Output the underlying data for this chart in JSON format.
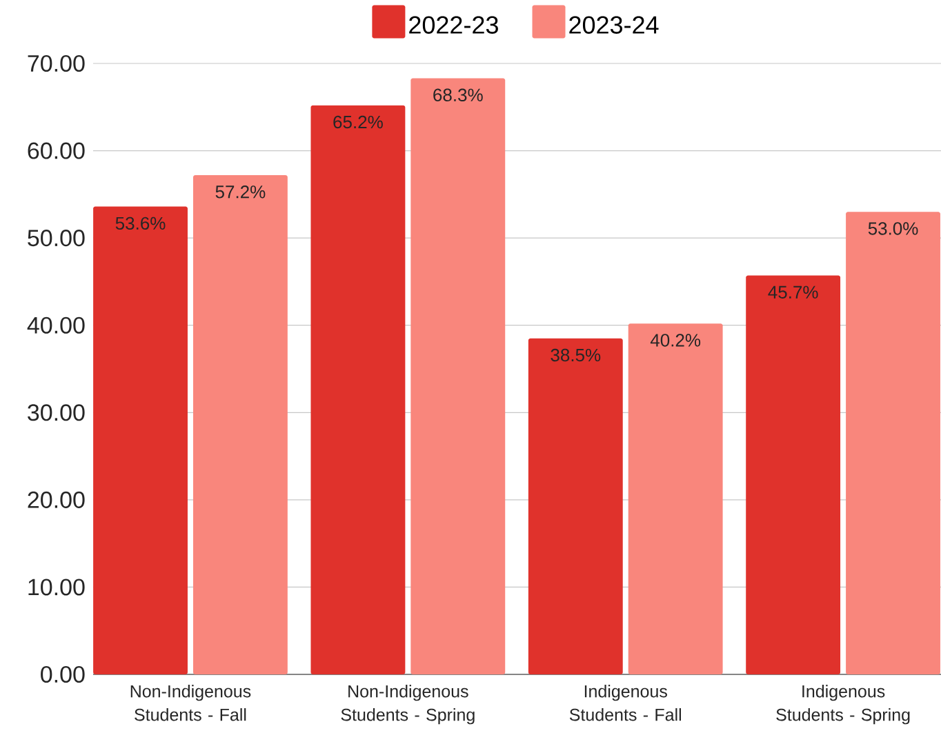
{
  "chart_data": {
    "type": "bar",
    "categories": [
      "Non-Indigenous Students - Fall",
      "Non-Indigenous Students - Spring",
      "Indigenous Students - Fall",
      "Indigenous Students - Spring"
    ],
    "series": [
      {
        "name": "2022-23",
        "color": "#e0322c",
        "values": [
          53.6,
          65.2,
          38.5,
          45.7
        ],
        "value_labels": [
          "53.6%",
          "65.2%",
          "38.5%",
          "45.7%"
        ]
      },
      {
        "name": "2023-24",
        "color": "#f9867c",
        "values": [
          57.2,
          68.3,
          40.2,
          53.0
        ],
        "value_labels": [
          "57.2%",
          "68.3%",
          "40.2%",
          "53.0%"
        ]
      }
    ],
    "ylim": [
      0,
      70
    ],
    "yticks": [
      {
        "value": 0,
        "label": "0.00"
      },
      {
        "value": 10,
        "label": "10.00"
      },
      {
        "value": 20,
        "label": "20.00"
      },
      {
        "value": 30,
        "label": "30.00"
      },
      {
        "value": 40,
        "label": "40.00"
      },
      {
        "value": 50,
        "label": "50.00"
      },
      {
        "value": 60,
        "label": "60.00"
      },
      {
        "value": 70,
        "label": "70.00"
      }
    ],
    "grid": "y",
    "legend": "top"
  }
}
